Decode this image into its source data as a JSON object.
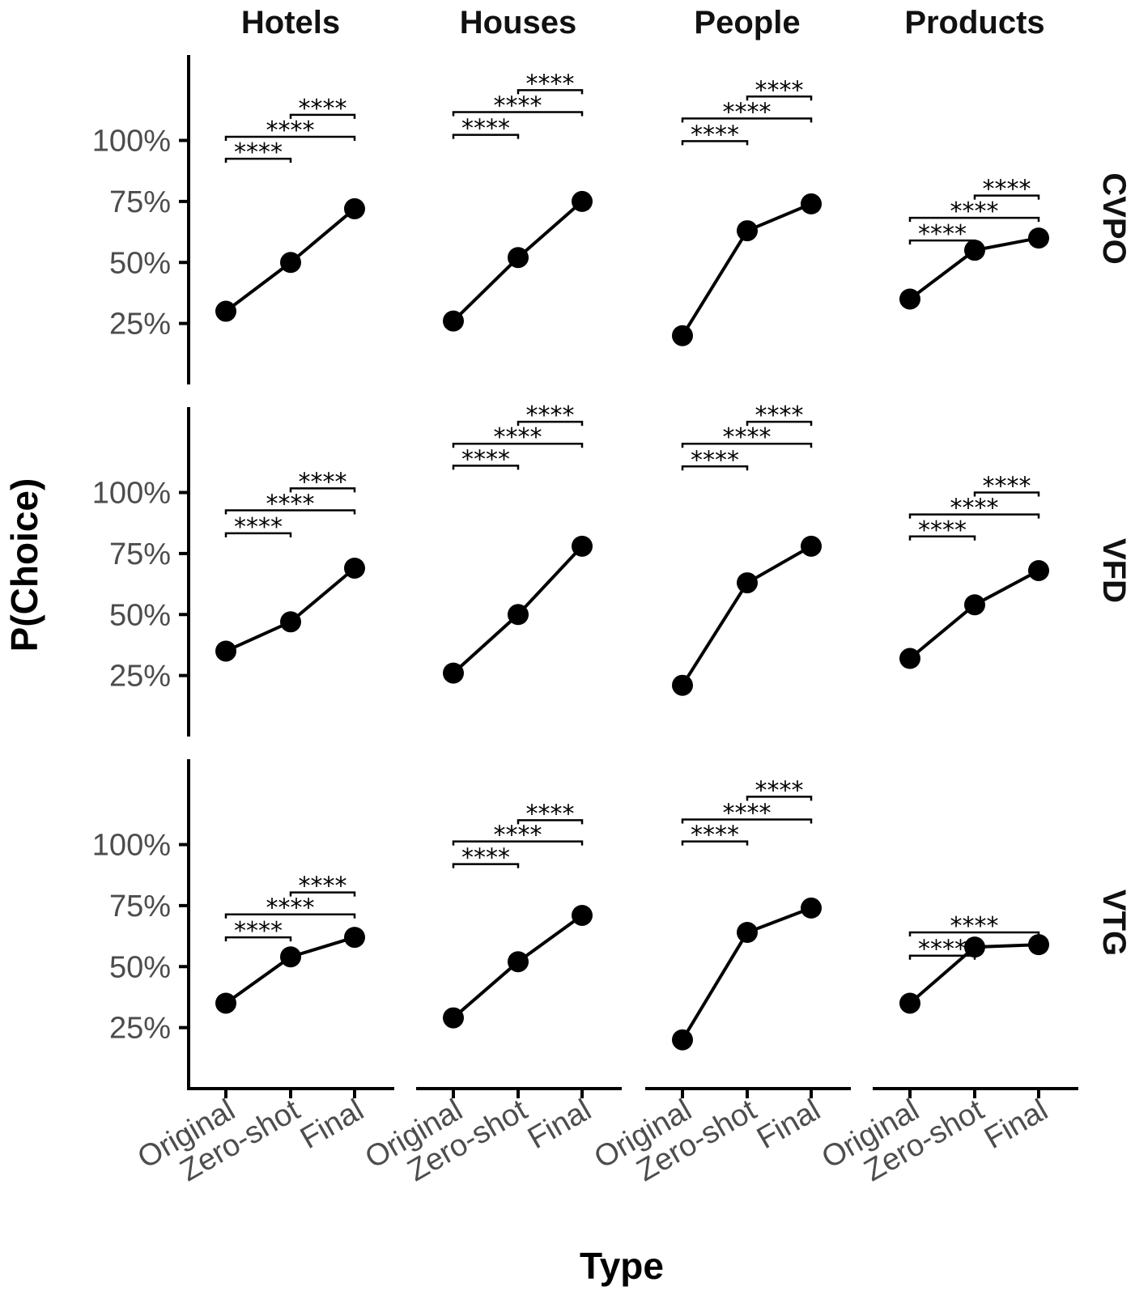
{
  "colors": {
    "ink": "#000000",
    "tick_text": "#4d4d4d",
    "title_text": "#111111"
  },
  "chart_data": {
    "type": "line",
    "layout": "faceted grid (rows x columns)",
    "xlabel": "Type",
    "ylabel": "P(Choice)",
    "ylim": [
      0,
      135
    ],
    "y_ticks": [
      25,
      50,
      75,
      100
    ],
    "y_tick_labels": [
      "25%",
      "50%",
      "75%",
      "100%"
    ],
    "x_categories": [
      "Original",
      "Zero-shot",
      "Final"
    ],
    "columns": [
      "Hotels",
      "Houses",
      "People",
      "Products"
    ],
    "rows": [
      "CVPO",
      "VFD",
      "VTG"
    ],
    "panels": [
      {
        "row": "CVPO",
        "column": "Hotels",
        "values": [
          30,
          50,
          72
        ],
        "brackets": [
          {
            "from": 0,
            "to": 1,
            "level": 92.5,
            "label": "****"
          },
          {
            "from": 0,
            "to": 2,
            "level": 101.5,
            "label": "****"
          },
          {
            "from": 1,
            "to": 2,
            "level": 110.5,
            "label": "****"
          }
        ]
      },
      {
        "row": "CVPO",
        "column": "Houses",
        "values": [
          26,
          52,
          75
        ],
        "brackets": [
          {
            "from": 0,
            "to": 1,
            "level": 102.3,
            "label": "****"
          },
          {
            "from": 0,
            "to": 2,
            "level": 111.6,
            "label": "****"
          },
          {
            "from": 1,
            "to": 2,
            "level": 120.6,
            "label": "****"
          }
        ]
      },
      {
        "row": "CVPO",
        "column": "People",
        "values": [
          20,
          63,
          74
        ],
        "brackets": [
          {
            "from": 0,
            "to": 1,
            "level": 99.7,
            "label": "****"
          },
          {
            "from": 0,
            "to": 2,
            "level": 109,
            "label": "****"
          },
          {
            "from": 1,
            "to": 2,
            "level": 118,
            "label": "****"
          }
        ]
      },
      {
        "row": "CVPO",
        "column": "Products",
        "values": [
          35,
          55,
          60
        ],
        "brackets": [
          {
            "from": 0,
            "to": 1,
            "level": 59,
            "label": "****"
          },
          {
            "from": 0,
            "to": 2,
            "level": 68.3,
            "label": "****"
          },
          {
            "from": 1,
            "to": 2,
            "level": 77.4,
            "label": "****"
          }
        ]
      },
      {
        "row": "VFD",
        "column": "Hotels",
        "values": [
          35,
          47,
          69
        ],
        "brackets": [
          {
            "from": 0,
            "to": 1,
            "level": 83.3,
            "label": "****"
          },
          {
            "from": 0,
            "to": 2,
            "level": 92.7,
            "label": "****"
          },
          {
            "from": 1,
            "to": 2,
            "level": 101.7,
            "label": "****"
          }
        ]
      },
      {
        "row": "VFD",
        "column": "Houses",
        "values": [
          26,
          50,
          78
        ],
        "brackets": [
          {
            "from": 0,
            "to": 1,
            "level": 111,
            "label": "****"
          },
          {
            "from": 0,
            "to": 2,
            "level": 120,
            "label": "****"
          },
          {
            "from": 1,
            "to": 2,
            "level": 129,
            "label": "****"
          }
        ]
      },
      {
        "row": "VFD",
        "column": "People",
        "values": [
          21,
          63,
          78
        ],
        "brackets": [
          {
            "from": 0,
            "to": 1,
            "level": 110.7,
            "label": "****"
          },
          {
            "from": 0,
            "to": 2,
            "level": 120,
            "label": "****"
          },
          {
            "from": 1,
            "to": 2,
            "level": 129,
            "label": "****"
          }
        ]
      },
      {
        "row": "VFD",
        "column": "Products",
        "values": [
          32,
          54,
          68
        ],
        "brackets": [
          {
            "from": 0,
            "to": 1,
            "level": 82,
            "label": "****"
          },
          {
            "from": 0,
            "to": 2,
            "level": 91,
            "label": "****"
          },
          {
            "from": 1,
            "to": 2,
            "level": 100,
            "label": "****"
          }
        ]
      },
      {
        "row": "VTG",
        "column": "Hotels",
        "values": [
          35,
          54,
          62
        ],
        "brackets": [
          {
            "from": 0,
            "to": 1,
            "level": 62,
            "label": "****"
          },
          {
            "from": 0,
            "to": 2,
            "level": 71.4,
            "label": "****"
          },
          {
            "from": 1,
            "to": 2,
            "level": 80.4,
            "label": "****"
          }
        ]
      },
      {
        "row": "VTG",
        "column": "Houses",
        "values": [
          29,
          52,
          71
        ],
        "brackets": [
          {
            "from": 0,
            "to": 1,
            "level": 92,
            "label": "****"
          },
          {
            "from": 0,
            "to": 2,
            "level": 101.3,
            "label": "****"
          },
          {
            "from": 1,
            "to": 2,
            "level": 110,
            "label": "****"
          }
        ]
      },
      {
        "row": "VTG",
        "column": "People",
        "values": [
          20,
          64,
          74
        ],
        "brackets": [
          {
            "from": 0,
            "to": 1,
            "level": 101.3,
            "label": "****"
          },
          {
            "from": 0,
            "to": 2,
            "level": 110.3,
            "label": "****"
          },
          {
            "from": 1,
            "to": 2,
            "level": 119.6,
            "label": "****"
          }
        ]
      },
      {
        "row": "VTG",
        "column": "Products",
        "values": [
          35,
          58,
          59
        ],
        "brackets": [
          {
            "from": 0,
            "to": 1,
            "level": 54.5,
            "label": "****"
          },
          {
            "from": 0,
            "to": 2,
            "level": 64,
            "label": "****"
          }
        ]
      }
    ]
  }
}
